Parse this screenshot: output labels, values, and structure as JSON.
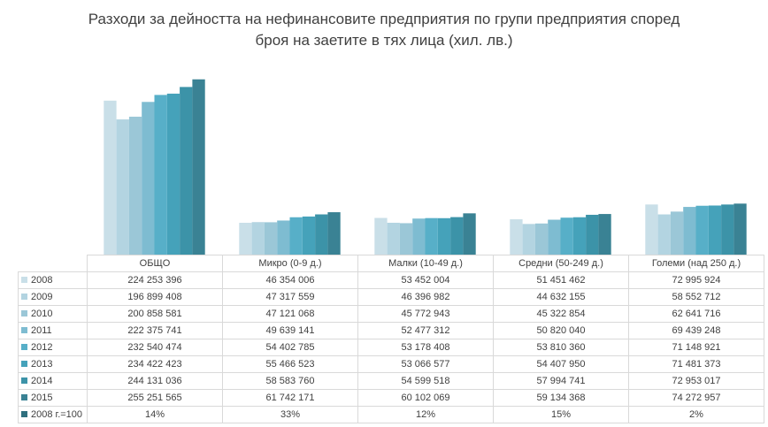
{
  "chart_data": {
    "type": "bar",
    "title": "Разходи за дейността на нефинансовите предприятия по групи предприятия според броя на заетите в тях лица (хил. лв.)",
    "title_lines": [
      "Разходи за дейността на нефинансовите предприятия по групи предприятия според",
      "броя на заетите в тях лица (хил. лв.)"
    ],
    "categories": [
      "ОБЩО",
      "Микро (0-9 д.)",
      "Малки (10-49 д.)",
      "Средни (50-249 д.)",
      "Големи (над 250 д.)"
    ],
    "series": [
      {
        "name": "2008",
        "color": "#c9dfe8",
        "values": [
          224253396,
          46354006,
          53452004,
          51451462,
          72995924
        ],
        "labels": [
          "224 253 396",
          "46 354 006",
          "53 452 004",
          "51 451 462",
          "72 995 924"
        ]
      },
      {
        "name": "2009",
        "color": "#b3d4e1",
        "values": [
          196899408,
          47317559,
          46396982,
          44632155,
          58552712
        ],
        "labels": [
          "196 899 408",
          "47 317 559",
          "46 396 982",
          "44 632 155",
          "58 552 712"
        ]
      },
      {
        "name": "2010",
        "color": "#9bc7d7",
        "values": [
          200858581,
          47121068,
          45772943,
          45322854,
          62641716
        ],
        "labels": [
          "200 858 581",
          "47 121 068",
          "45 772 943",
          "45 322 854",
          "62 641 716"
        ]
      },
      {
        "name": "2011",
        "color": "#7ebcd1",
        "values": [
          222375741,
          49639141,
          52477312,
          50820040,
          69439248
        ],
        "labels": [
          "222 375 741",
          "49 639 141",
          "52 477 312",
          "50 820 040",
          "69 439 248"
        ]
      },
      {
        "name": "2012",
        "color": "#57afc8",
        "values": [
          232540474,
          54402785,
          53178408,
          53810360,
          71148921
        ],
        "labels": [
          "232 540 474",
          "54 402 785",
          "53 178 408",
          "53 810 360",
          "71 148 921"
        ]
      },
      {
        "name": "2013",
        "color": "#45a2ba",
        "values": [
          234422423,
          55466523,
          53066577,
          54407950,
          71481373
        ],
        "labels": [
          "234 422 423",
          "55 466 523",
          "53 066 577",
          "54 407 950",
          "71 481 373"
        ]
      },
      {
        "name": "2014",
        "color": "#3c93a8",
        "values": [
          244131036,
          58583760,
          54599518,
          57994741,
          72953017
        ],
        "labels": [
          "244 131 036",
          "58 583 760",
          "54 599 518",
          "57 994 741",
          "72 953 017"
        ]
      },
      {
        "name": "2015",
        "color": "#3a8294",
        "values": [
          255251565,
          61742171,
          60102069,
          59134368,
          74272957
        ],
        "labels": [
          "255 251 565",
          "61 742 171",
          "60 102 069",
          "59 134 368",
          "74 272 957"
        ]
      }
    ],
    "index_row": {
      "name": "2008 г.=100",
      "color": "#2f6f7e",
      "values": [
        "14%",
        "33%",
        "12%",
        "15%",
        "2%"
      ]
    },
    "ylim": [
      0,
      300000000
    ],
    "xlabel": "",
    "ylabel": "",
    "grid": false,
    "legend": "data-table"
  }
}
